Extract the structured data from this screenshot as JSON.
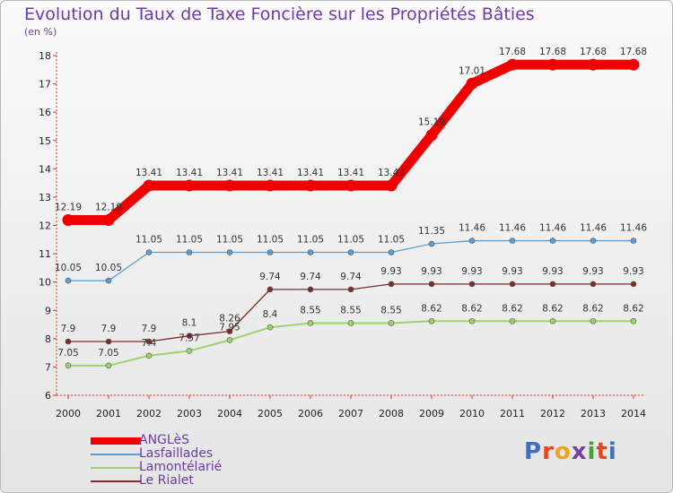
{
  "header": {
    "title": "Evolution du Taux de Taxe Foncière sur les Propriétés Bâties",
    "unit": "(en %)"
  },
  "logo": {
    "text": "Proxiti",
    "colors": [
      "#3d6fc0",
      "#e8451f",
      "#f2a31b",
      "#7a3fa0",
      "#3fa535",
      "#e8451f",
      "#3d6fc0"
    ]
  },
  "chart_data": {
    "type": "line",
    "title": "Evolution du Taux de Taxe Foncière sur les Propriétés Bâties",
    "ylabel": "(en %)",
    "x": [
      "2000",
      "2001",
      "2002",
      "2003",
      "2004",
      "2005",
      "2006",
      "2007",
      "2008",
      "2009",
      "2010",
      "2011",
      "2012",
      "2013",
      "2014"
    ],
    "ylim": [
      6,
      18
    ],
    "yticks": [
      6,
      7,
      8,
      9,
      10,
      11,
      12,
      13,
      14,
      15,
      16,
      17,
      18
    ],
    "grid": false,
    "legend_position": "bottom-left",
    "series": [
      {
        "name": "ANGLèS",
        "color": "#ee0000",
        "values": [
          12.19,
          12.19,
          13.41,
          13.41,
          13.41,
          13.41,
          13.41,
          13.41,
          13.41,
          15.19,
          17.01,
          17.68,
          17.68,
          17.68,
          17.68
        ],
        "labels": [
          "12.19",
          "12.19",
          "13.41",
          "13.41",
          "13.41",
          "13.41",
          "13.41",
          "13.41",
          "13.41",
          "15.19",
          "17.01",
          "17.68",
          "17.68",
          "17.68",
          "17.68"
        ]
      },
      {
        "name": "Lasfaillades",
        "color": "#5b9ed3",
        "values": [
          10.05,
          10.05,
          11.05,
          11.05,
          11.05,
          11.05,
          11.05,
          11.05,
          11.05,
          11.35,
          11.46,
          11.46,
          11.46,
          11.46,
          11.46
        ],
        "labels": [
          "10.05",
          "10.05",
          "11.05",
          "11.05",
          "11.05",
          "11.05",
          "11.05",
          "11.05",
          "11.05",
          "11.35",
          "11.46",
          "11.46",
          "11.46",
          "11.46",
          "11.46"
        ]
      },
      {
        "name": "Lamontélarié",
        "color": "#9ad46a",
        "values": [
          7.05,
          7.05,
          7.4,
          7.57,
          7.95,
          8.4,
          8.55,
          8.55,
          8.55,
          8.62,
          8.62,
          8.62,
          8.62,
          8.62,
          8.62
        ],
        "labels": [
          "7.05",
          "7.05",
          "7.4",
          "7.57",
          "7.95",
          "8.4",
          "8.55",
          "8.55",
          "8.55",
          "8.62",
          "8.62",
          "8.62",
          "8.62",
          "8.62",
          "8.62"
        ]
      },
      {
        "name": "Le Rialet",
        "color": "#7a2e2e",
        "values": [
          7.9,
          7.9,
          7.9,
          8.1,
          8.26,
          9.74,
          9.74,
          9.74,
          9.93,
          9.93,
          9.93,
          9.93,
          9.93,
          9.93,
          9.93
        ],
        "labels": [
          "7.9",
          "7.9",
          "7.9",
          "8.1",
          "8.26",
          "9.74",
          "9.74",
          "9.74",
          "9.93",
          "9.93",
          "9.93",
          "9.93",
          "9.93",
          "9.93",
          "9.93"
        ]
      }
    ]
  }
}
